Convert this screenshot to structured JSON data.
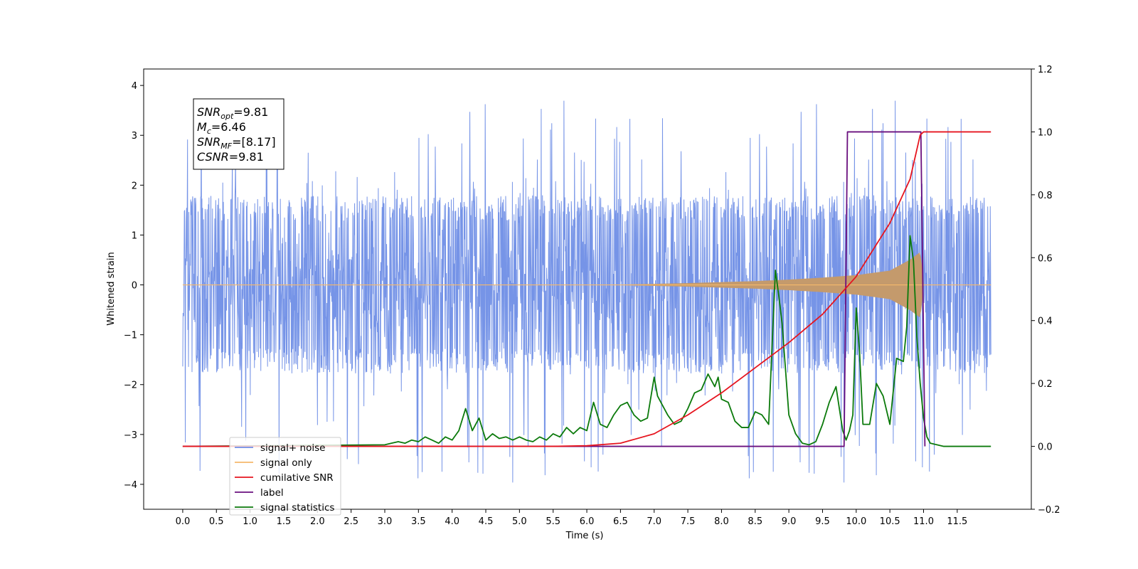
{
  "chart_data": {
    "type": "line",
    "title": "",
    "xlabel": "Time (s)",
    "ylabel": "Whitened strain",
    "xlim": [
      -0.58,
      12.6
    ],
    "ylim_left": [
      -4.5,
      4.33
    ],
    "ylim_right": [
      -0.2,
      1.2
    ],
    "x_ticks": [
      0.0,
      0.5,
      1.0,
      1.5,
      2.0,
      2.5,
      3.0,
      3.5,
      4.0,
      4.5,
      5.0,
      5.5,
      6.0,
      6.5,
      7.0,
      7.5,
      8.0,
      8.5,
      9.0,
      9.5,
      10.0,
      10.5,
      11.0,
      11.5
    ],
    "x_tick_labels": [
      "0.0",
      "0.5",
      "1.0",
      "1.5",
      "2.0",
      "2.5",
      "3.0",
      "3.5",
      "4.0",
      "4.5",
      "5.0",
      "5.5",
      "6.0",
      "6.5",
      "7.0",
      "7.5",
      "8.0",
      "8.5",
      "9.0",
      "9.5",
      "10.0",
      "10.5",
      "11.0",
      "11.5"
    ],
    "y_left_ticks": [
      -4,
      -3,
      -2,
      -1,
      0,
      1,
      2,
      3,
      4
    ],
    "y_left_tick_labels": [
      "−4",
      "−3",
      "−2",
      "−1",
      "0",
      "1",
      "2",
      "3",
      "4"
    ],
    "y_right_ticks": [
      -0.2,
      0.0,
      0.2,
      0.4,
      0.6,
      0.8,
      1.0,
      1.2
    ],
    "y_right_tick_labels": [
      "−0.2",
      "0.0",
      "0.2",
      "0.4",
      "0.6",
      "0.8",
      "1.0",
      "1.2"
    ],
    "grid": false,
    "legend_position": "lower-left",
    "colors": {
      "noise": "#6f8ee6",
      "signal": "#f5b86b",
      "signal_fill": "#c49a6c",
      "csnr": "#e6151f",
      "label": "#6a0f7e",
      "stats": "#0b7a0b"
    },
    "series": [
      {
        "name": "signal+ noise",
        "axis": "left",
        "color": "#6f8ee6",
        "x_range": [
          0.0,
          12.0
        ],
        "amplitude_envelope": [
          1.7,
          -1.7
        ],
        "peak_range": [
          -4.1,
          3.92
        ]
      },
      {
        "name": "signal only",
        "axis": "left",
        "color": "#f5b86b",
        "x": [
          0.0,
          6.5,
          7.5,
          8.5,
          9.0,
          9.5,
          10.0,
          10.5,
          10.8,
          10.95,
          11.0,
          12.0
        ],
        "envelope": [
          0.0,
          0.0,
          0.03,
          0.07,
          0.1,
          0.14,
          0.19,
          0.28,
          0.5,
          0.65,
          0.0,
          0.0
        ]
      },
      {
        "name": "cumilative SNR",
        "axis": "right",
        "color": "#e6151f",
        "x": [
          0.0,
          5.5,
          6.0,
          6.5,
          7.0,
          7.5,
          8.0,
          8.5,
          9.0,
          9.5,
          10.0,
          10.5,
          10.8,
          10.95,
          11.0,
          12.0
        ],
        "values": [
          0.0,
          0.0,
          0.002,
          0.01,
          0.04,
          0.1,
          0.17,
          0.25,
          0.33,
          0.42,
          0.54,
          0.71,
          0.85,
          0.99,
          1.0,
          1.0
        ]
      },
      {
        "name": "label",
        "axis": "right",
        "color": "#6a0f7e",
        "x": [
          0.0,
          9.82,
          9.87,
          10.96,
          11.02
        ],
        "values": [
          0.0,
          0.0,
          1.0,
          1.0,
          0.0
        ]
      },
      {
        "name": "signal statistics",
        "axis": "right",
        "color": "#0b7a0b",
        "x": [
          0.0,
          3.0,
          3.1,
          3.2,
          3.3,
          3.4,
          3.5,
          3.6,
          3.7,
          3.8,
          3.9,
          4.0,
          4.1,
          4.2,
          4.3,
          4.4,
          4.5,
          4.6,
          4.7,
          4.8,
          4.9,
          5.0,
          5.1,
          5.2,
          5.3,
          5.4,
          5.5,
          5.6,
          5.7,
          5.8,
          5.9,
          6.0,
          6.1,
          6.2,
          6.3,
          6.4,
          6.5,
          6.6,
          6.7,
          6.8,
          6.9,
          7.0,
          7.05,
          7.1,
          7.2,
          7.3,
          7.4,
          7.5,
          7.6,
          7.7,
          7.8,
          7.9,
          7.95,
          8.0,
          8.1,
          8.2,
          8.3,
          8.4,
          8.5,
          8.6,
          8.7,
          8.8,
          8.85,
          8.9,
          9.0,
          9.1,
          9.2,
          9.3,
          9.4,
          9.5,
          9.6,
          9.7,
          9.8,
          9.85,
          9.9,
          9.95,
          10.0,
          10.05,
          10.1,
          10.2,
          10.3,
          10.4,
          10.5,
          10.6,
          10.7,
          10.75,
          10.8,
          10.85,
          10.9,
          10.95,
          11.0,
          11.05,
          11.1,
          11.2,
          11.3,
          11.5,
          12.0
        ],
        "values": [
          0.0,
          0.005,
          0.01,
          0.015,
          0.01,
          0.02,
          0.015,
          0.03,
          0.02,
          0.01,
          0.03,
          0.02,
          0.05,
          0.12,
          0.05,
          0.09,
          0.02,
          0.04,
          0.025,
          0.03,
          0.02,
          0.03,
          0.02,
          0.015,
          0.03,
          0.02,
          0.04,
          0.03,
          0.06,
          0.04,
          0.06,
          0.05,
          0.14,
          0.07,
          0.06,
          0.1,
          0.13,
          0.14,
          0.1,
          0.08,
          0.09,
          0.22,
          0.16,
          0.14,
          0.1,
          0.07,
          0.08,
          0.12,
          0.17,
          0.18,
          0.23,
          0.19,
          0.22,
          0.15,
          0.14,
          0.08,
          0.06,
          0.06,
          0.11,
          0.1,
          0.07,
          0.56,
          0.48,
          0.39,
          0.1,
          0.04,
          0.01,
          0.005,
          0.015,
          0.07,
          0.14,
          0.19,
          0.05,
          0.02,
          0.05,
          0.1,
          0.44,
          0.3,
          0.07,
          0.07,
          0.2,
          0.16,
          0.07,
          0.28,
          0.27,
          0.38,
          0.67,
          0.59,
          0.35,
          0.2,
          0.09,
          0.03,
          0.01,
          0.005,
          0.0,
          0.0,
          0.0
        ]
      }
    ],
    "annotation": {
      "lines": [
        {
          "base": "SNR",
          "sub": "opt",
          "value": "=9.81"
        },
        {
          "base": "M",
          "sub": "c",
          "value": "=6.46"
        },
        {
          "base": "SNR",
          "sub": "MF",
          "value": "=[8.17]"
        },
        {
          "base": "CSNR",
          "sub": "",
          "value": "=9.81"
        }
      ]
    },
    "legend": [
      "signal+ noise",
      "signal only",
      "cumilative SNR",
      "label",
      "signal statistics"
    ]
  }
}
